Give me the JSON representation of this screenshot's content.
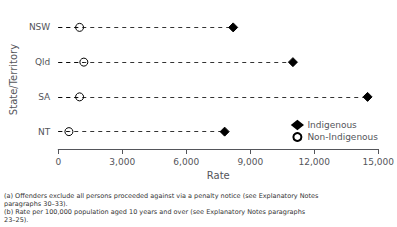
{
  "chart_data": {
    "type": "dot",
    "orientation": "horizontal",
    "categories": [
      "NT",
      "SA",
      "Qld",
      "NSW"
    ],
    "series": [
      {
        "name": "Indigenous",
        "color": "black",
        "marker": "diamond",
        "values": [
          7800,
          14500,
          11000,
          8200
        ]
      },
      {
        "name": "Non-Indigenous",
        "color": "white",
        "marker": "circle",
        "values": [
          500,
          1000,
          1200,
          1000
        ]
      }
    ],
    "xlabel": "Rate",
    "ylabel": "State/Territory",
    "xlim": [
      0,
      15000
    ],
    "xticks": [
      0,
      3000,
      6000,
      9000,
      12000,
      15000
    ],
    "line_style": "dashed",
    "grid": false,
    "legend": "lower right",
    "annotation": "(a) Offenders exclude all persons proceeded against via a penalty notice (see Explanatory Notes\nparagraphs 30–33).\n(b) Rate per 100,000 population aged 10 years and over (see Explanatory Notes paragraphs\n23–25)."
  }
}
